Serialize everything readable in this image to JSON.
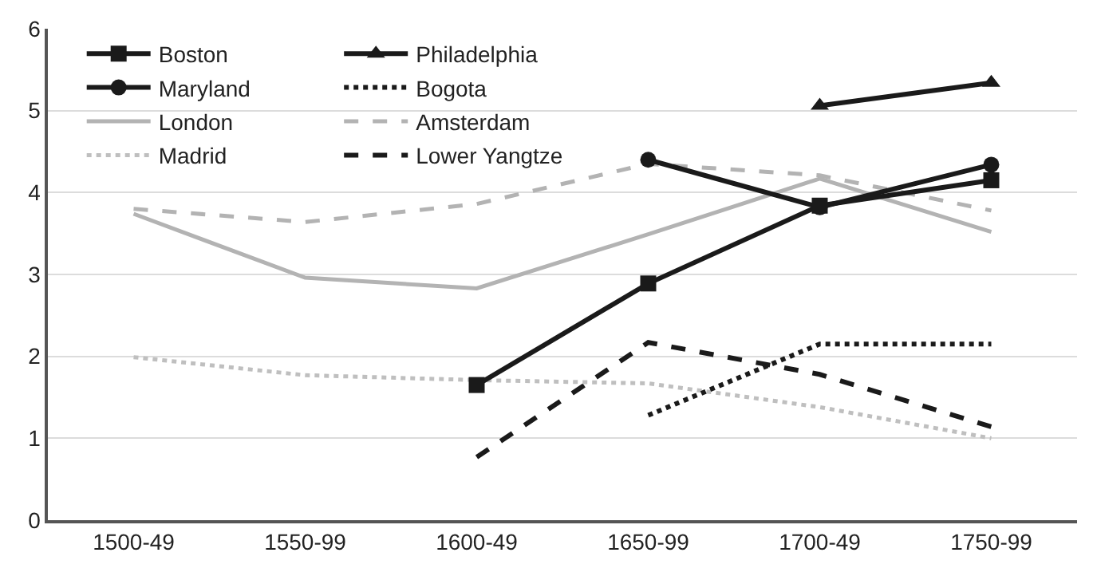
{
  "chart_data": {
    "type": "line",
    "categories": [
      "1500-49",
      "1550-99",
      "1600-49",
      "1650-99",
      "1700-49",
      "1750-99"
    ],
    "series": [
      {
        "name": "Boston",
        "color": "#1a1a1a",
        "marker": "square",
        "line_style": "solid",
        "values": [
          null,
          null,
          1.65,
          2.89,
          3.84,
          4.15
        ]
      },
      {
        "name": "Philadelphia",
        "color": "#1a1a1a",
        "marker": "triangle",
        "line_style": "solid",
        "values": [
          null,
          null,
          null,
          null,
          5.06,
          5.34
        ]
      },
      {
        "name": "Maryland",
        "color": "#1a1a1a",
        "marker": "circle",
        "line_style": "solid",
        "values": [
          null,
          null,
          null,
          4.4,
          3.82,
          4.34
        ]
      },
      {
        "name": "Bogota",
        "color": "#1a1a1a",
        "marker": "none",
        "line_style": "dotted",
        "values": [
          null,
          null,
          null,
          1.28,
          2.15,
          2.15
        ]
      },
      {
        "name": "London",
        "color": "#b3b3b3",
        "marker": "none",
        "line_style": "solid",
        "values": [
          3.74,
          2.96,
          2.83,
          3.49,
          4.17,
          3.52
        ]
      },
      {
        "name": "Amsterdam",
        "color": "#b3b3b3",
        "marker": "none",
        "line_style": "dashed",
        "values": [
          3.8,
          3.64,
          3.86,
          4.35,
          4.21,
          3.78
        ]
      },
      {
        "name": "Madrid",
        "color": "#bfbfbf",
        "marker": "none",
        "line_style": "dotted",
        "values": [
          1.99,
          1.77,
          1.71,
          1.67,
          1.38,
          1.0
        ]
      },
      {
        "name": "Lower Yangtze",
        "color": "#1a1a1a",
        "marker": "none",
        "line_style": "dashed",
        "values": [
          null,
          null,
          0.77,
          2.17,
          1.78,
          1.14
        ]
      }
    ],
    "ylim": [
      0,
      6
    ],
    "yticks": [
      0,
      1,
      2,
      3,
      4,
      5,
      6
    ],
    "grid": "y",
    "legend": "top left"
  }
}
